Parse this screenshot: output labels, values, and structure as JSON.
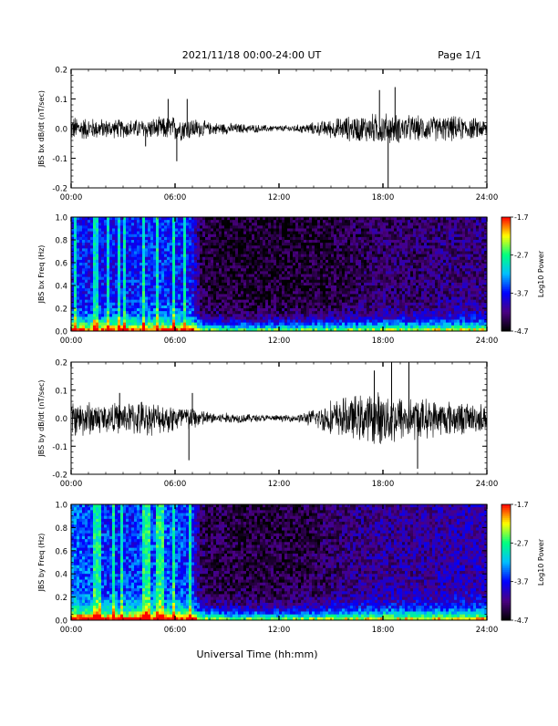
{
  "header": {
    "title": "2021/11/18  00:00-24:00 UT",
    "page_label": "Page 1/1"
  },
  "footer": {
    "xlabel": "Universal Time (hh:mm)"
  },
  "colors": {
    "trace": "#000000",
    "background": "#ffffff",
    "colormap": [
      "#000000",
      "#4b0082",
      "#0000ff",
      "#00bfff",
      "#00ff80",
      "#ffff00",
      "#ff0000"
    ]
  },
  "chart_data": [
    {
      "type": "line",
      "ylabel": "JBS bx dB/dt (nT/sec)",
      "ylim": [
        -0.2,
        0.2
      ],
      "yticks": [
        "0.2",
        "0.1",
        "0.0",
        "-0.1",
        "-0.2"
      ],
      "yticks_values": [
        0.2,
        0.1,
        0.0,
        -0.1,
        -0.2
      ],
      "xticks": [
        "00:00",
        "06:00",
        "12:00",
        "18:00",
        "24:00"
      ],
      "xlim": [
        "00:00",
        "24:00"
      ],
      "envelope_hours": [
        0,
        1,
        2,
        3,
        4,
        5,
        6,
        7,
        8,
        9,
        10,
        11,
        12,
        13,
        14,
        15,
        16,
        17,
        18,
        19,
        20,
        21,
        22,
        23,
        24
      ],
      "envelope_amplitude": [
        0.04,
        0.035,
        0.03,
        0.03,
        0.03,
        0.035,
        0.04,
        0.035,
        0.02,
        0.018,
        0.015,
        0.012,
        0.01,
        0.012,
        0.02,
        0.03,
        0.04,
        0.045,
        0.05,
        0.045,
        0.04,
        0.04,
        0.04,
        0.035,
        0.03
      ],
      "spikes": [
        {
          "hour": 4.3,
          "value": -0.06
        },
        {
          "hour": 5.6,
          "value": 0.1
        },
        {
          "hour": 6.1,
          "value": -0.11
        },
        {
          "hour": 6.7,
          "value": 0.1
        },
        {
          "hour": 17.8,
          "value": 0.13
        },
        {
          "hour": 18.3,
          "value": -0.2
        },
        {
          "hour": 18.7,
          "value": 0.14
        }
      ]
    },
    {
      "type": "heatmap",
      "ylabel": "JBS bx Freq (Hz)",
      "ylim": [
        0.0,
        1.0
      ],
      "yticks": [
        "1.0",
        "0.8",
        "0.6",
        "0.4",
        "0.2",
        "0.0"
      ],
      "yticks_values": [
        1.0,
        0.8,
        0.6,
        0.4,
        0.2,
        0.0
      ],
      "xticks": [
        "00:00",
        "06:00",
        "12:00",
        "18:00",
        "24:00"
      ],
      "colorbar": {
        "label": "Log10 Power",
        "ticks": [
          "-1.7",
          "-2.7",
          "-3.7",
          "-4.7"
        ],
        "range": [
          -4.7,
          -1.7
        ]
      },
      "activity_hours": [
        0,
        1,
        2,
        3,
        4,
        5,
        6,
        7,
        7.5,
        8,
        10,
        12,
        14,
        16,
        18,
        20,
        22,
        24
      ],
      "activity_level": [
        0.55,
        0.5,
        0.5,
        0.5,
        0.55,
        0.55,
        0.55,
        0.5,
        0.15,
        0.1,
        0.08,
        0.08,
        0.1,
        0.15,
        0.2,
        0.2,
        0.25,
        0.25
      ]
    },
    {
      "type": "line",
      "ylabel": "JBS by dB/dt (nT/sec)",
      "ylim": [
        -0.2,
        0.2
      ],
      "yticks": [
        "0.2",
        "0.1",
        "0.0",
        "-0.1",
        "-0.2"
      ],
      "yticks_values": [
        0.2,
        0.1,
        0.0,
        -0.1,
        -0.2
      ],
      "xticks": [
        "00:00",
        "06:00",
        "12:00",
        "18:00",
        "24:00"
      ],
      "xlim": [
        "00:00",
        "24:00"
      ],
      "envelope_hours": [
        0,
        1,
        2,
        3,
        4,
        5,
        6,
        7,
        8,
        9,
        10,
        11,
        12,
        13,
        14,
        15,
        16,
        17,
        18,
        19,
        20,
        21,
        22,
        23,
        24
      ],
      "envelope_amplitude": [
        0.06,
        0.06,
        0.05,
        0.05,
        0.06,
        0.05,
        0.05,
        0.04,
        0.02,
        0.018,
        0.015,
        0.012,
        0.01,
        0.012,
        0.03,
        0.06,
        0.07,
        0.08,
        0.09,
        0.08,
        0.07,
        0.06,
        0.06,
        0.05,
        0.05
      ],
      "spikes": [
        {
          "hour": 2.8,
          "value": 0.09
        },
        {
          "hour": 6.8,
          "value": -0.15
        },
        {
          "hour": 7.0,
          "value": 0.09
        },
        {
          "hour": 17.5,
          "value": 0.17
        },
        {
          "hour": 18.5,
          "value": 0.2
        },
        {
          "hour": 19.5,
          "value": 0.2
        },
        {
          "hour": 20.0,
          "value": -0.18
        }
      ]
    },
    {
      "type": "heatmap",
      "ylabel": "JBS by Freq (Hz)",
      "ylim": [
        0.0,
        1.0
      ],
      "yticks": [
        "1.0",
        "0.8",
        "0.6",
        "0.4",
        "0.2",
        "0.0"
      ],
      "yticks_values": [
        1.0,
        0.8,
        0.6,
        0.4,
        0.2,
        0.0
      ],
      "xticks": [
        "00:00",
        "06:00",
        "12:00",
        "18:00",
        "24:00"
      ],
      "colorbar": {
        "label": "Log10 Power",
        "ticks": [
          "-1.7",
          "-2.7",
          "-3.7",
          "-4.7"
        ],
        "range": [
          -4.7,
          -1.7
        ]
      },
      "activity_hours": [
        0,
        1,
        2,
        3,
        4,
        5,
        6,
        7,
        7.5,
        8,
        10,
        12,
        14,
        16,
        18,
        20,
        22,
        24
      ],
      "activity_level": [
        0.65,
        0.6,
        0.55,
        0.55,
        0.6,
        0.6,
        0.6,
        0.55,
        0.2,
        0.15,
        0.12,
        0.12,
        0.15,
        0.25,
        0.3,
        0.3,
        0.35,
        0.35
      ]
    }
  ]
}
